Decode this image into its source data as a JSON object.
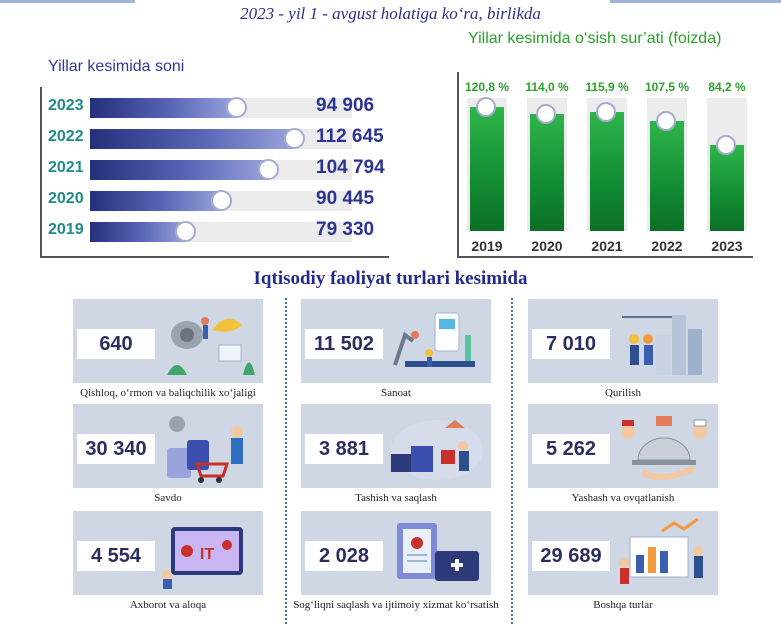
{
  "subtitle": "2023 - yil 1 - avgust holatiga ko‘ra, birlikda",
  "chart_data": [
    {
      "type": "bar",
      "orientation": "horizontal",
      "title": "Yillar kesimida soni",
      "categories": [
        "2023",
        "2022",
        "2021",
        "2020",
        "2019"
      ],
      "values": [
        94906,
        112645,
        104794,
        90445,
        79330
      ],
      "value_labels": [
        "94 906",
        "112 645",
        "104 794",
        "90 445",
        "79 330"
      ],
      "xlim": [
        50000,
        130000
      ]
    },
    {
      "type": "bar",
      "orientation": "vertical",
      "title": "Yillar kesimida o‘sish sur’ati (foizda)",
      "categories": [
        "2019",
        "2020",
        "2021",
        "2022",
        "2023"
      ],
      "values": [
        120.8,
        114.0,
        115.9,
        107.5,
        84.2
      ],
      "value_labels": [
        "120,8 %",
        "114,0 %",
        "115,9 %",
        "107,5 %",
        "84,2 %"
      ],
      "ylim": [
        0,
        130
      ]
    }
  ],
  "colors": {
    "bar_fill": "#3b46a0",
    "column_fill": "#13993a",
    "year_label": "#1f8a8a",
    "accent_green": "#2aa12a"
  },
  "section_title": "Iqtisodiy faoliyat turlari kesimida",
  "sectors": [
    {
      "value": "640",
      "label": "Qishloq, o‘rmon va baliqchilik xo‘jaligi",
      "icon": "agriculture-icon"
    },
    {
      "value": "11 502",
      "label": "Sanoat",
      "icon": "industry-icon"
    },
    {
      "value": "7 010",
      "label": "Qurilish",
      "icon": "construction-icon"
    },
    {
      "value": "30 340",
      "label": "Savdo",
      "icon": "trade-icon"
    },
    {
      "value": "3 881",
      "label": "Tashish va saqlash",
      "icon": "transport-icon"
    },
    {
      "value": "5 262",
      "label": "Yashash va ovqatlanish",
      "icon": "food-service-icon"
    },
    {
      "value": "4 554",
      "label": "Axborot va aloqa",
      "icon": "it-icon"
    },
    {
      "value": "2 028",
      "label": "Sog‘liqni saqlash va ijtimoiy xizmat ko‘rsatish",
      "icon": "healthcare-icon"
    },
    {
      "value": "29 689",
      "label": "Boshqa turlar",
      "icon": "other-icon"
    }
  ]
}
